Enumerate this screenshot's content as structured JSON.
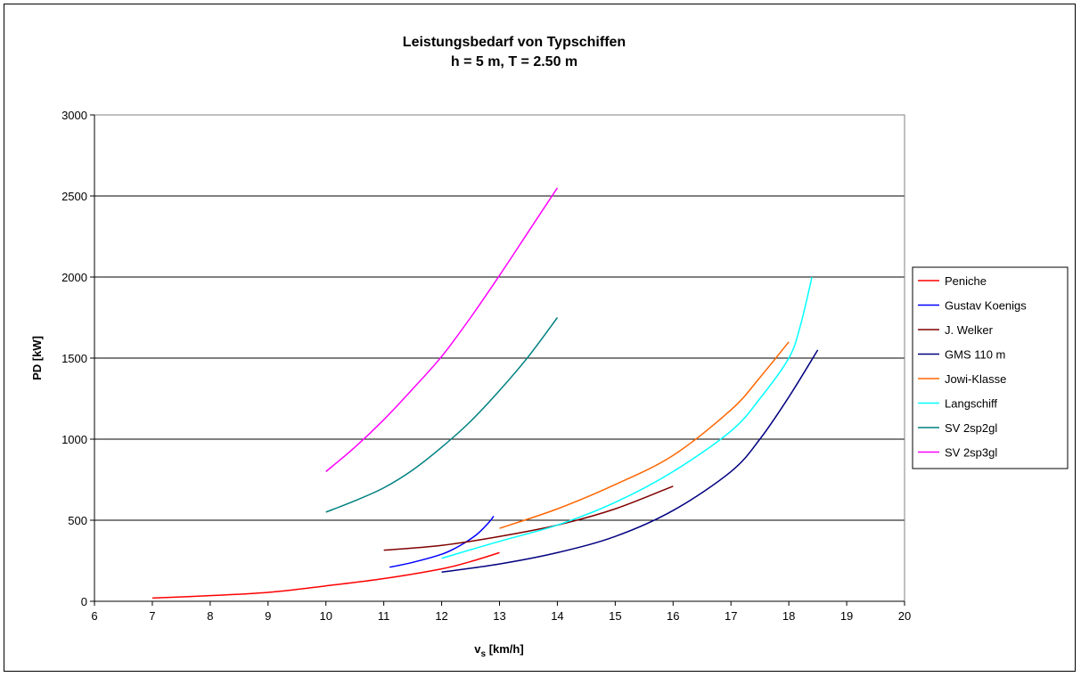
{
  "chart_data": {
    "type": "line",
    "title": "Leistungsbedarf von Typschiffen",
    "subtitle": "h = 5 m, T = 2.50 m",
    "xlabel_main": "v",
    "xlabel_sub": "s",
    "xlabel_rest": " [km/h]",
    "ylabel": "PD [kW]",
    "xlim": [
      6,
      20
    ],
    "ylim": [
      0,
      3000
    ],
    "xticks": [
      6,
      7,
      8,
      9,
      10,
      11,
      12,
      13,
      14,
      15,
      16,
      17,
      18,
      19,
      20
    ],
    "yticks": [
      0,
      500,
      1000,
      1500,
      2000,
      2500,
      3000
    ],
    "grid": "horizontal",
    "legend_position": "right",
    "series": [
      {
        "name": "Peniche",
        "color": "#ff0000",
        "x": [
          7,
          8,
          9,
          10,
          11,
          12,
          12.5,
          13
        ],
        "y": [
          20,
          35,
          55,
          95,
          140,
          200,
          245,
          300
        ]
      },
      {
        "name": "Gustav Koenigs",
        "color": "#0000ff",
        "x": [
          11.1,
          11.5,
          12,
          12.3,
          12.6,
          12.8,
          12.9
        ],
        "y": [
          210,
          240,
          290,
          340,
          410,
          480,
          525
        ]
      },
      {
        "name": "J. Welker",
        "color": "#800000",
        "x": [
          11,
          12,
          13,
          14,
          15,
          16
        ],
        "y": [
          315,
          345,
          400,
          470,
          570,
          710
        ]
      },
      {
        "name": "GMS 110 m",
        "color": "#000080",
        "x": [
          12,
          13,
          14,
          15,
          16,
          17,
          17.5,
          18,
          18.5
        ],
        "y": [
          180,
          230,
          300,
          400,
          560,
          800,
          1000,
          1260,
          1550
        ]
      },
      {
        "name": "Jowi-Klasse",
        "color": "#ff6600",
        "x": [
          13,
          14,
          15,
          16,
          17,
          17.5,
          18
        ],
        "y": [
          450,
          570,
          720,
          900,
          1180,
          1380,
          1600
        ]
      },
      {
        "name": "Langschiff",
        "color": "#00ffff",
        "x": [
          12,
          13,
          14,
          15,
          16,
          17,
          17.5,
          18,
          18.2,
          18.4
        ],
        "y": [
          265,
          370,
          470,
          610,
          800,
          1050,
          1250,
          1500,
          1700,
          2000
        ]
      },
      {
        "name": "SV 2sp2gl",
        "color": "#008080",
        "x": [
          10,
          10.5,
          11,
          11.5,
          12,
          12.5,
          13,
          13.5,
          14
        ],
        "y": [
          550,
          620,
          700,
          810,
          950,
          1110,
          1300,
          1510,
          1750
        ]
      },
      {
        "name": "SV 2sp3gl",
        "color": "#ff00ff",
        "x": [
          10,
          10.5,
          11,
          11.5,
          12,
          12.5,
          13,
          13.5,
          14
        ],
        "y": [
          800,
          950,
          1120,
          1310,
          1510,
          1750,
          2010,
          2280,
          2550
        ]
      }
    ]
  }
}
